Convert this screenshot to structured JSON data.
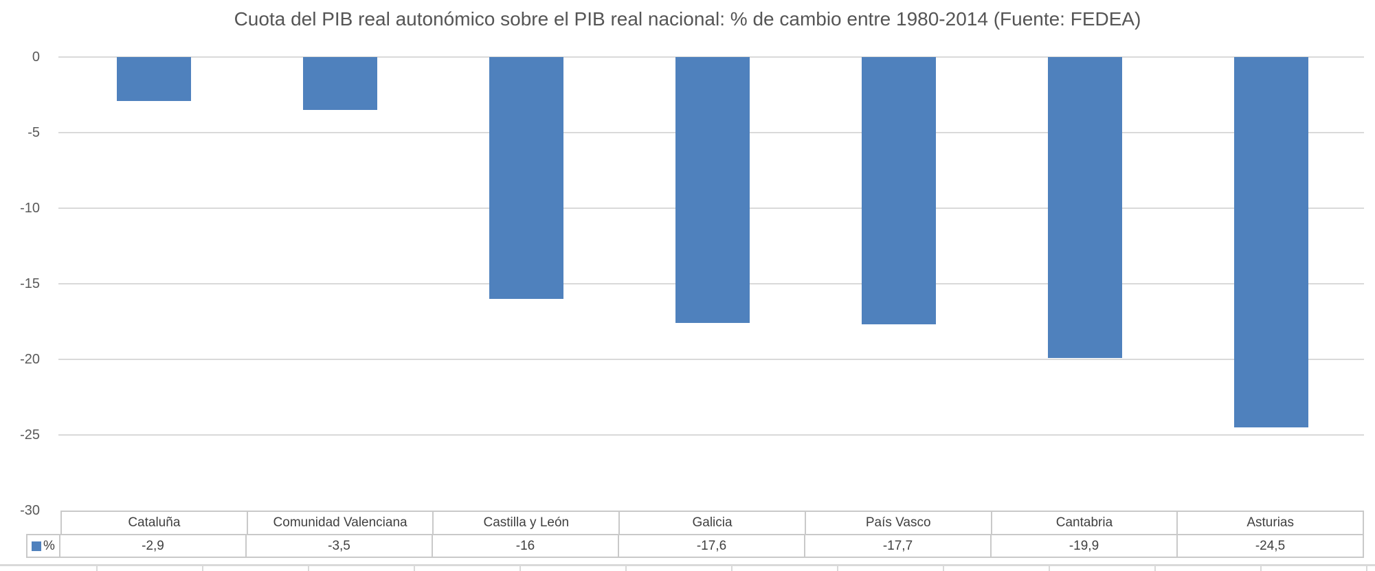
{
  "chart_data": {
    "type": "bar",
    "title": "Cuota del PIB real autonómico sobre el PIB real nacional: % de cambio entre 1980-2014 (Fuente: FEDEA)",
    "categories": [
      "Cataluña",
      "Comunidad Valenciana",
      "Castilla y León",
      "Galicia",
      "País Vasco",
      "Cantabria",
      "Asturias"
    ],
    "series": [
      {
        "name": "%",
        "values": [
          -2.9,
          -3.5,
          -16,
          -17.6,
          -17.7,
          -19.9,
          -24.5
        ],
        "color": "#4F81BD"
      }
    ],
    "value_display_labels": [
      "-2,9",
      "-3,5",
      "-16",
      "-17,6",
      "-17,7",
      "-19,9",
      "-24,5"
    ],
    "xlabel": "",
    "ylabel": "",
    "ylim": [
      -30,
      0
    ],
    "yticks": [
      0,
      -5,
      -10,
      -15,
      -20,
      -25,
      -30
    ],
    "ytick_labels": [
      "0",
      "-5",
      "-10",
      "-15",
      "-20",
      "-25",
      "-30"
    ],
    "grid": true,
    "legend_position": "data-table-key",
    "data_table_shown": true,
    "orientation": "vertical-negative"
  },
  "colors": {
    "bar": "#4F81BD",
    "gridline": "#D9D9D9",
    "table_border": "#C9C9C9",
    "axis_text": "#595959",
    "table_text": "#404040",
    "title_text": "#555555",
    "background": "#FFFFFF"
  }
}
